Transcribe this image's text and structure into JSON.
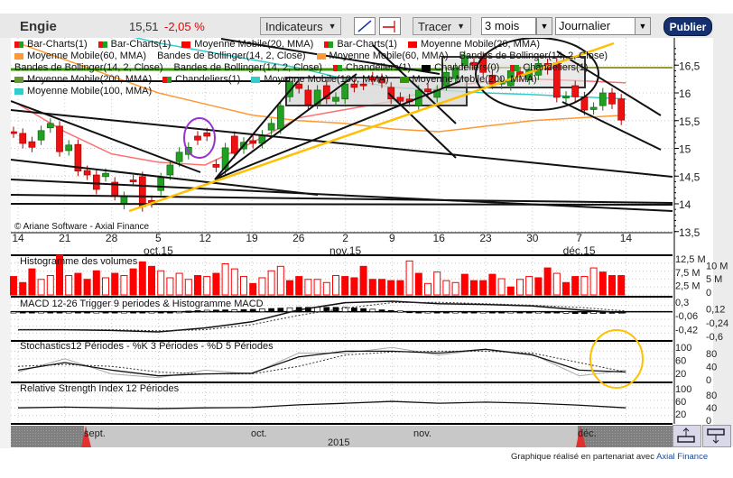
{
  "header": {
    "title": "Engie",
    "price": "15,51",
    "change": "-2,05 %",
    "indicators_label": "Indicateurs",
    "draw_label": "Tracer",
    "period_value": "3 mois",
    "interval_value": "Journalier",
    "publish_label": "Publier"
  },
  "legend": {
    "row1": [
      {
        "label": "Bar-Charts(1)",
        "swatch": "rg"
      },
      {
        "label": "Bar-Charts(1)",
        "swatch": "rg"
      },
      {
        "label": "Moyenne Mobile(20, MMA)",
        "swatch": "#ff0000"
      },
      {
        "label": "Bar-Charts(1)",
        "swatch": "rg"
      },
      {
        "label": "Moyenne Mobile(20, MMA)",
        "swatch": "#ff0000"
      },
      {
        "label": "Moyenne Mobile(60, MMA)",
        "swatch": "#ff9933"
      }
    ],
    "row2": [
      {
        "label": "Bandes de Bollinger(14, 2, Close)",
        "swatch": ""
      },
      {
        "label": "Moyenne Mobile(60, MMA)",
        "swatch": "#ff9933"
      },
      {
        "label": "Bandes de Bollinger(14, 2, Close)",
        "swatch": ""
      },
      {
        "label": "Bandes de Bollinger(14, 2, Close)",
        "swatch": ""
      }
    ],
    "row3": [
      {
        "label": "Bandes de Bollinger(14, 2, Close)",
        "swatch": ""
      },
      {
        "label": "Chandeliers(1)",
        "swatch": "rg"
      },
      {
        "label": "Chandeliers(0)",
        "swatch": "#000000"
      },
      {
        "label": "Chandeliers(1)",
        "swatch": "rg"
      },
      {
        "label": "Moyenne Mobile(200, MMA)",
        "swatch": "#669933"
      },
      {
        "label": "Chandeliers(1)",
        "swatch": "rg"
      }
    ],
    "row4": [
      {
        "label": "Moyenne Mobile(100, MMA)",
        "swatch": "#33cccc"
      },
      {
        "label": "Moyenne Mobile(200, MMA)",
        "swatch": "#339900"
      },
      {
        "label": "Moyenne Mobile(100, MMA)",
        "swatch": "#33cccc"
      }
    ]
  },
  "copyright": "© Ariane Software - Axial Finance",
  "colors": {
    "up": "#22a022",
    "down": "#ee1111",
    "ma20": "#ff7070",
    "ma60": "#ff9933",
    "ma100": "#33cccc",
    "ma200": "#339900",
    "trend_yellow": "#ffc000",
    "circle_purple": "#9933cc",
    "publish": "#14306e"
  },
  "chart_data": {
    "type": "candlestick",
    "date_ticks": [
      "14",
      "21",
      "28",
      "5",
      "12",
      "19",
      "26",
      "2",
      "9",
      "16",
      "23",
      "30",
      "7",
      "14"
    ],
    "month_labels": [
      {
        "label": "oct.15",
        "at": "5"
      },
      {
        "label": "nov.15",
        "at": "2"
      },
      {
        "label": "déc.15",
        "at": "7"
      }
    ],
    "price_axis": {
      "ticks": [
        "16,5",
        "16",
        "15,5",
        "15",
        "14,5",
        "14",
        "13,5"
      ],
      "values": [
        16.5,
        16,
        15.5,
        15,
        14.5,
        14,
        13.5
      ],
      "ylim": [
        13.4,
        16.9
      ]
    },
    "candles": {
      "open": [
        15.3,
        15.27,
        15.12,
        15.15,
        15.37,
        15.4,
        14.96,
        15.07,
        14.6,
        14.52,
        14.49,
        14.39,
        13.99,
        14.43,
        14.49,
        14.06,
        14.24,
        14.52,
        14.76,
        14.89,
        15.22,
        15.28,
        14.71,
        14.62,
        15.22,
        14.99,
        15.14,
        15.09,
        15.33,
        15.35,
        15.93,
        16.16,
        16.05,
        15.8,
        16.13,
        15.85,
        15.89,
        16.16,
        16.16,
        16.29,
        16.26,
        16.1,
        15.92,
        15.89,
        15.77,
        16.07,
        15.92,
        16.13,
        16.26,
        16.49,
        16.55,
        16.65,
        16.32,
        16.16,
        16.13,
        16.38,
        16.24,
        16.32,
        16.53,
        16.54,
        15.91,
        16.13,
        15.93,
        15.7,
        15.77,
        16.0,
        15.89
      ],
      "close": [
        15.28,
        15.09,
        15.02,
        15.32,
        15.45,
        14.94,
        15.06,
        14.59,
        14.52,
        14.26,
        14.55,
        14.15,
        14.13,
        14.41,
        13.95,
        14.02,
        14.47,
        14.7,
        14.93,
        15.02,
        15.15,
        15.22,
        14.66,
        15.01,
        14.91,
        15.11,
        15.09,
        15.24,
        15.45,
        15.77,
        16.21,
        16.08,
        15.79,
        16.05,
        15.89,
        15.92,
        16.16,
        16.1,
        16.14,
        16.23,
        16.18,
        15.89,
        15.85,
        15.84,
        16.05,
        16.02,
        16.05,
        16.37,
        16.45,
        16.67,
        16.5,
        16.37,
        16.16,
        16.2,
        16.4,
        16.3,
        16.42,
        16.53,
        16.42,
        15.92,
        15.94,
        15.93,
        15.69,
        15.74,
        16.0,
        15.8,
        15.51
      ]
    },
    "moving_averages": [
      {
        "name": "Moyenne Mobile(20, MMA)",
        "color": "#ff7070",
        "values": [
          15.8,
          15.3,
          14.9,
          14.75,
          14.7,
          15.1,
          15.55,
          15.7,
          15.85,
          16.1,
          16.2,
          16.25,
          16.22,
          16.18
        ]
      },
      {
        "name": "Moyenne Mobile(60, MMA)",
        "color": "#ff9933",
        "values": [
          16.9,
          16.6,
          16.3,
          16.0,
          15.8,
          15.6,
          15.5,
          15.45,
          15.35,
          15.3,
          15.4,
          15.5,
          15.55,
          15.6
        ]
      },
      {
        "name": "Moyenne Mobile(100, MMA)",
        "color": "#33cccc",
        "values": [
          17.6,
          17.4,
          17.1,
          16.9,
          16.75,
          16.6,
          16.45,
          16.25,
          16.1,
          16.05,
          16.0,
          15.97,
          15.93,
          15.89
        ]
      }
    ],
    "volume": {
      "title": "Histogramme des volumes",
      "ticks": [
        "12,5 M",
        "10 M",
        "7,5 M",
        "5 M",
        "2,5 M",
        "0"
      ],
      "ylim_millions": [
        0,
        12.5
      ],
      "values_millions": [
        5.8,
        3.9,
        8.2,
        4.9,
        6.1,
        12.5,
        6.1,
        6.8,
        4.9,
        7.6,
        5.4,
        6.8,
        6.1,
        8.2,
        10.4,
        9.0,
        7.6,
        5.4,
        6.8,
        4.9,
        6.1,
        5.8,
        6.8,
        9.8,
        8.2,
        5.8,
        3.6,
        5.4,
        7.6,
        9.0,
        4.5,
        5.8,
        4.9,
        4.9,
        3.9,
        6.1,
        5.8,
        5.4,
        9.0,
        4.9,
        4.9,
        4.5,
        4.5,
        10.7,
        6.8,
        3.6,
        7.2,
        4.5,
        3.9,
        6.5,
        4.5,
        4.5,
        6.5,
        5.1,
        2.5,
        4.9,
        5.8,
        5.4,
        8.5,
        6.8,
        3.9,
        5.8,
        5.8,
        8.5,
        7.2,
        6.1,
        6.1
      ],
      "filled": [
        1,
        1,
        1,
        0,
        0,
        1,
        0,
        1,
        1,
        1,
        0,
        1,
        0,
        1,
        1,
        1,
        0,
        0,
        0,
        0,
        1,
        0,
        1,
        0,
        0,
        0,
        1,
        0,
        0,
        0,
        1,
        1,
        0,
        0,
        0,
        0,
        1,
        1,
        1,
        1,
        1,
        1,
        1,
        0,
        1,
        0,
        0,
        0,
        0,
        1,
        1,
        1,
        1,
        0,
        1,
        0,
        0,
        1,
        1,
        0,
        1,
        1,
        0,
        0,
        1,
        1,
        1
      ]
    },
    "macd": {
      "title": "MACD 12-26   Trigger 9 periodes & Histogramme MACD",
      "ticks": [
        "0,3",
        "0,12",
        "-0,06",
        "-0,24",
        "-0,42",
        "-0,6"
      ],
      "ylim": [
        -0.6,
        0.3
      ],
      "macd": [
        -0.5,
        -0.5,
        -0.52,
        -0.56,
        -0.45,
        -0.28,
        0.05,
        0.25,
        0.29,
        0.22,
        0.2,
        0.16,
        0.05,
        -0.03
      ],
      "trigger": [
        -0.5,
        -0.5,
        -0.5,
        -0.53,
        -0.5,
        -0.36,
        -0.1,
        0.1,
        0.25,
        0.26,
        0.22,
        0.18,
        0.12,
        0.02
      ]
    },
    "stochastics": {
      "title": "Stochastics12 Périodes  -  %K 3 Périodes  -  %D 5 Périodes",
      "ticks": [
        "100",
        "80",
        "60",
        "40",
        "20",
        "0"
      ],
      "ylim": [
        0,
        100
      ],
      "k": [
        30,
        50,
        30,
        15,
        20,
        22,
        65,
        80,
        80,
        75,
        85,
        70,
        30,
        25
      ],
      "d": [
        40,
        45,
        40,
        25,
        20,
        20,
        40,
        70,
        78,
        80,
        80,
        75,
        50,
        25
      ],
      "raw": [
        25,
        60,
        20,
        10,
        30,
        20,
        75,
        75,
        90,
        70,
        85,
        72,
        15,
        30
      ]
    },
    "rsi": {
      "title": "Relative Strength Index 12 Périodes",
      "ticks": [
        "100",
        "80",
        "60",
        "40",
        "20",
        "0"
      ],
      "ylim": [
        0,
        100
      ],
      "values": [
        40,
        42,
        40,
        38,
        40,
        41,
        48,
        52,
        57,
        52,
        55,
        52,
        47,
        40
      ]
    }
  },
  "navigator": {
    "months": [
      "sept.",
      "oct.",
      "nov.",
      "déc."
    ],
    "year": "2015"
  },
  "footer": {
    "text": "Graphique réalisé en partenariat avec ",
    "link": "Axial Finance"
  }
}
